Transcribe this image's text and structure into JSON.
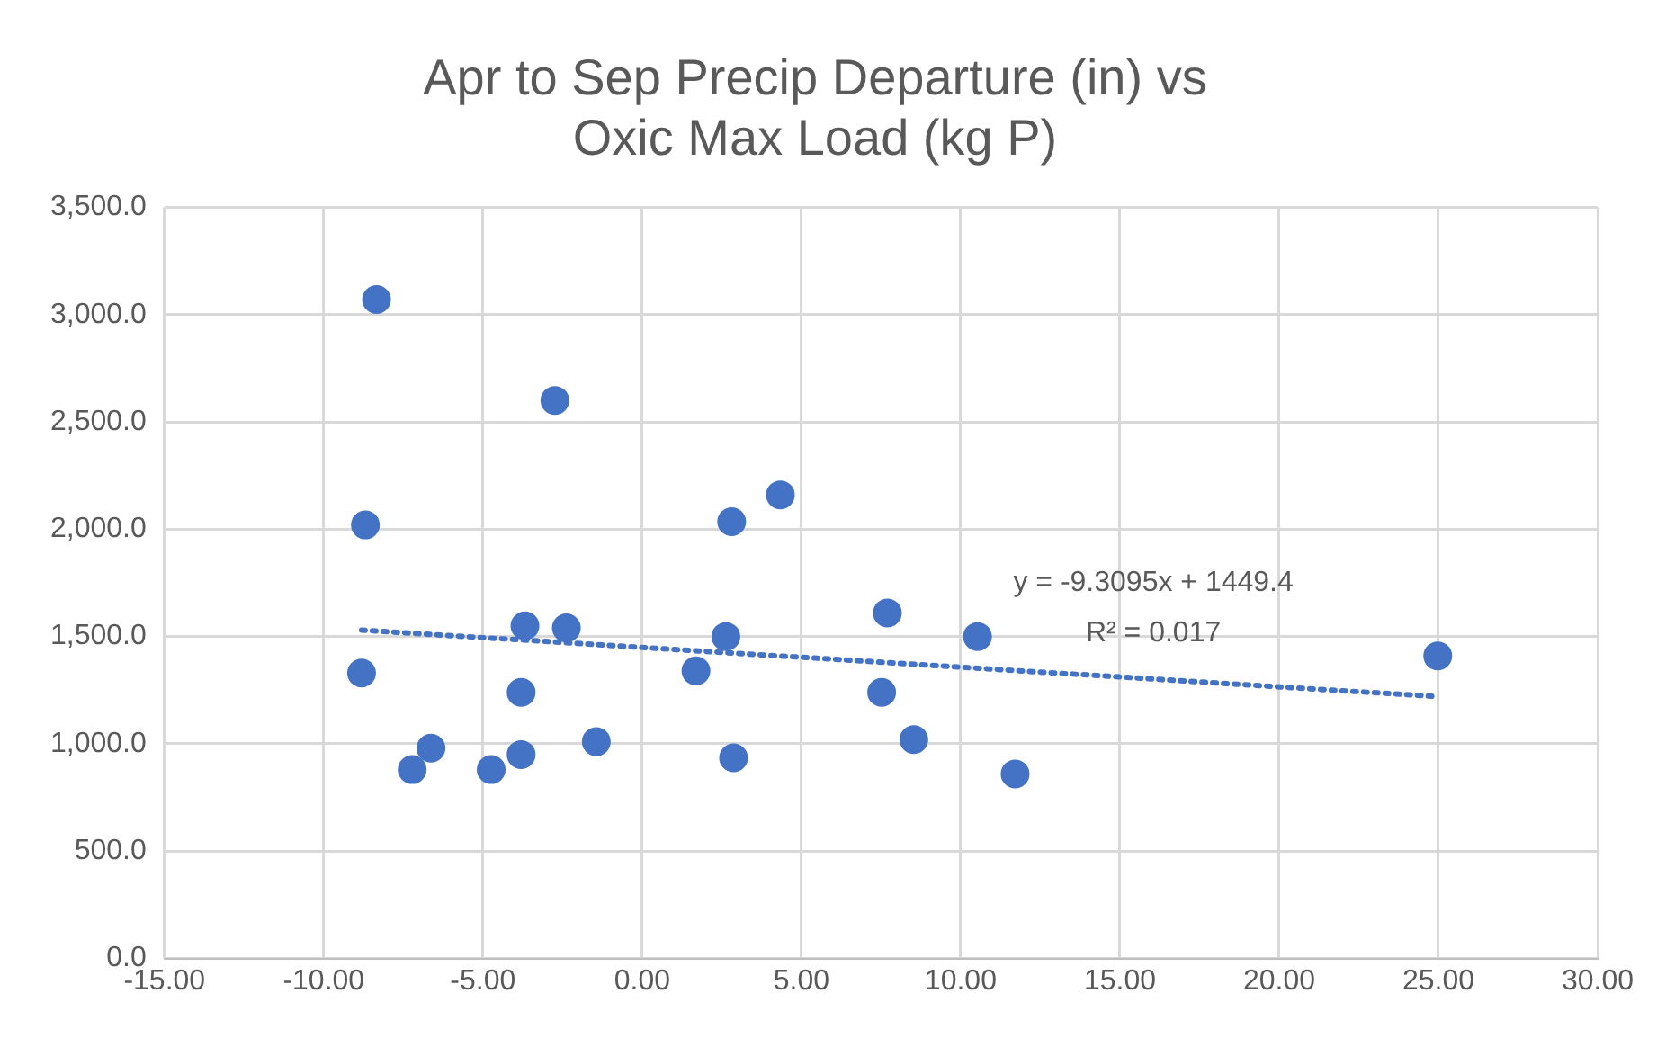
{
  "chart_data": {
    "type": "scatter",
    "title": [
      "Apr to Sep Precip Departure (in) vs",
      "Oxic Max Load (kg P)"
    ],
    "xlim": [
      -15,
      30
    ],
    "xticks": [
      {
        "value": -15,
        "label": "-15.00"
      },
      {
        "value": -10,
        "label": "-10.00"
      },
      {
        "value": -5,
        "label": "-5.00"
      },
      {
        "value": 0,
        "label": "0.00"
      },
      {
        "value": 5,
        "label": "5.00"
      },
      {
        "value": 10,
        "label": "10.00"
      },
      {
        "value": 15,
        "label": "15.00"
      },
      {
        "value": 20,
        "label": "20.00"
      },
      {
        "value": 25,
        "label": "25.00"
      },
      {
        "value": 30,
        "label": "30.00"
      }
    ],
    "ylim": [
      0,
      3500
    ],
    "yticks": [
      {
        "value": 0,
        "label": "0.0"
      },
      {
        "value": 500,
        "label": "500.0"
      },
      {
        "value": 1000,
        "label": "1,000.0"
      },
      {
        "value": 1500,
        "label": "1,500.0"
      },
      {
        "value": 2000,
        "label": "2,000.0"
      },
      {
        "value": 2500,
        "label": "2,500.0"
      },
      {
        "value": 3000,
        "label": "3,000.0"
      },
      {
        "value": 3500,
        "label": "3,500.0"
      }
    ],
    "grid": true,
    "series": [
      {
        "marker": "circle",
        "color": "#4472c4",
        "x": [
          -8.34,
          -8.69,
          -8.81,
          -2.74,
          -7.22,
          -6.63,
          -4.74,
          -3.8,
          -3.68,
          -3.8,
          -2.38,
          -1.44,
          1.69,
          2.63,
          2.81,
          2.87,
          4.34,
          7.52,
          7.7,
          8.53,
          10.53,
          11.71,
          24.98
        ],
        "values": [
          3070,
          2020,
          1330,
          2600,
          880,
          980,
          880,
          950,
          1550,
          1240,
          1540,
          1010,
          1340,
          1500,
          2035,
          935,
          2160,
          1240,
          1610,
          1020,
          1500,
          860,
          1410
        ]
      },
      {
        "type": "line",
        "color": "#4472c4",
        "line_style": "dotted",
        "x": [
          -8.81,
          24.98
        ],
        "values": [
          1530,
          1220
        ]
      }
    ],
    "annotations": [
      "y = -9.3095x + 1449.4",
      "R² = 0.017"
    ]
  }
}
